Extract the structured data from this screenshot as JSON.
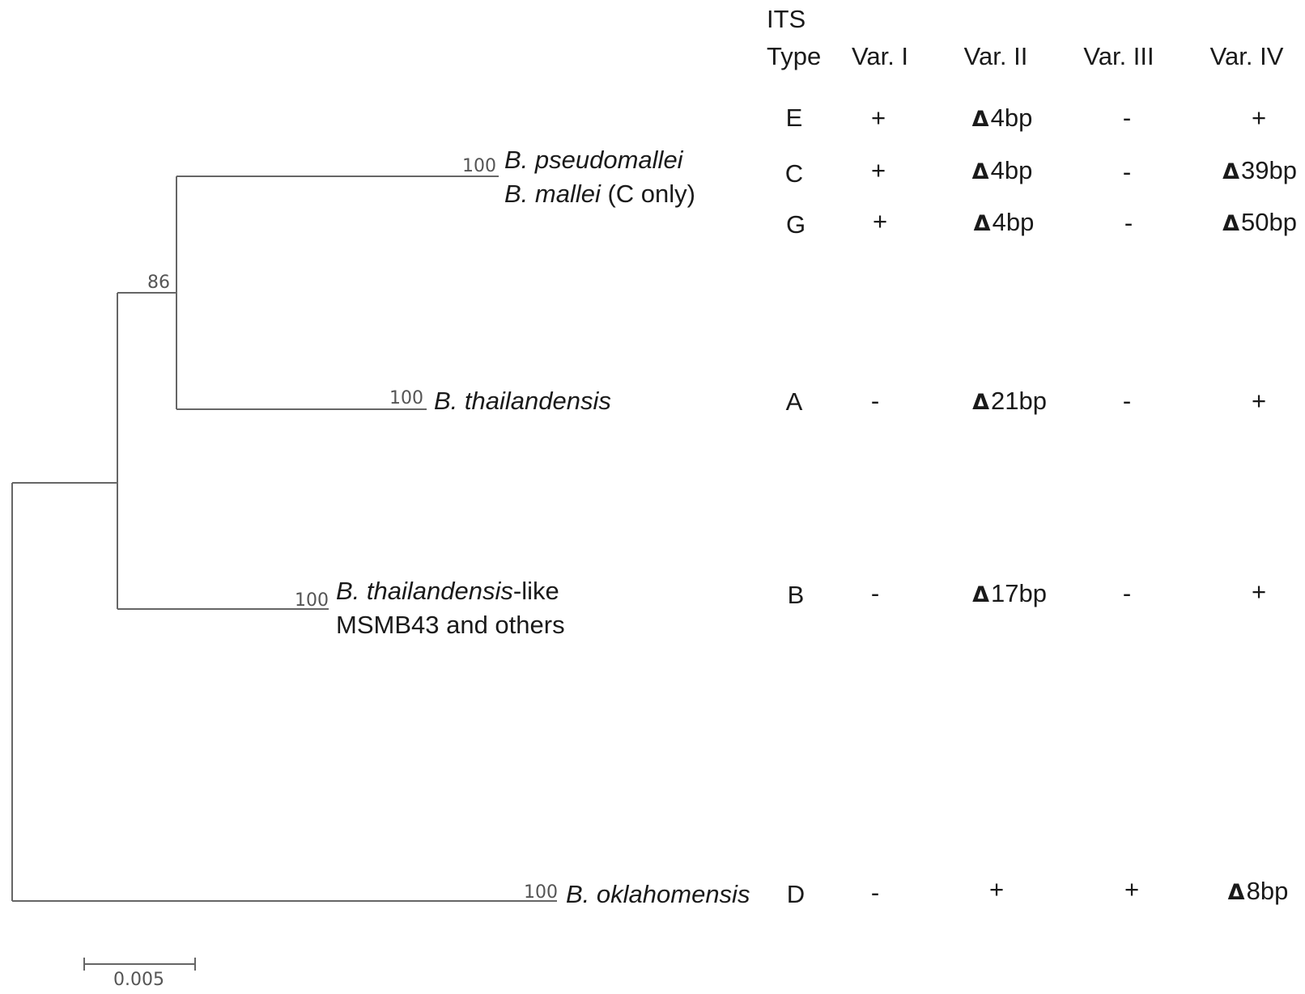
{
  "tree": {
    "taxa": [
      {
        "id": "bp",
        "name_italic": "B. pseudomallei",
        "name_plain": ""
      },
      {
        "id": "bm",
        "name_italic": "B. mallei",
        "name_plain": " (C only)"
      },
      {
        "id": "bt",
        "name_italic": "B. thailandensis",
        "name_plain": ""
      },
      {
        "id": "btl",
        "name_italic": "B. thailandensis",
        "name_plain": "-like"
      },
      {
        "id": "btl2",
        "name_italic": "",
        "name_plain": "MSMB43 and others"
      },
      {
        "id": "bo",
        "name_italic": "B. oklahomensis",
        "name_plain": ""
      }
    ],
    "bootstrap": {
      "bp": "100",
      "bt": "100",
      "btl": "100",
      "bo": "100",
      "internal": "86"
    },
    "scale_bar_label": "0.005",
    "line_color": "#666666"
  },
  "table": {
    "header_line1": "ITS",
    "columns": [
      "Type",
      "Var. I",
      "Var. II",
      "Var. III",
      "Var. IV"
    ],
    "delta_symbol": "Δ",
    "rows": [
      {
        "type": "E",
        "v1": "+",
        "v2": {
          "delta": true,
          "text": "4bp"
        },
        "v3": "-",
        "v4": {
          "delta": false,
          "text": "+"
        }
      },
      {
        "type": "C",
        "v1": "+",
        "v2": {
          "delta": true,
          "text": "4bp"
        },
        "v3": "-",
        "v4": {
          "delta": true,
          "text": "39bp"
        }
      },
      {
        "type": "G",
        "v1": "+",
        "v2": {
          "delta": true,
          "text": "4bp"
        },
        "v3": "-",
        "v4": {
          "delta": true,
          "text": "50bp"
        }
      },
      {
        "type": "A",
        "v1": "-",
        "v2": {
          "delta": true,
          "text": "21bp"
        },
        "v3": "-",
        "v4": {
          "delta": false,
          "text": "+"
        }
      },
      {
        "type": "B",
        "v1": "-",
        "v2": {
          "delta": true,
          "text": "17bp"
        },
        "v3": "-",
        "v4": {
          "delta": false,
          "text": "+"
        }
      },
      {
        "type": "D",
        "v1": "-",
        "v2": {
          "delta": false,
          "text": "+"
        },
        "v3": "+",
        "v4": {
          "delta": true,
          "text": "8bp"
        }
      }
    ]
  }
}
